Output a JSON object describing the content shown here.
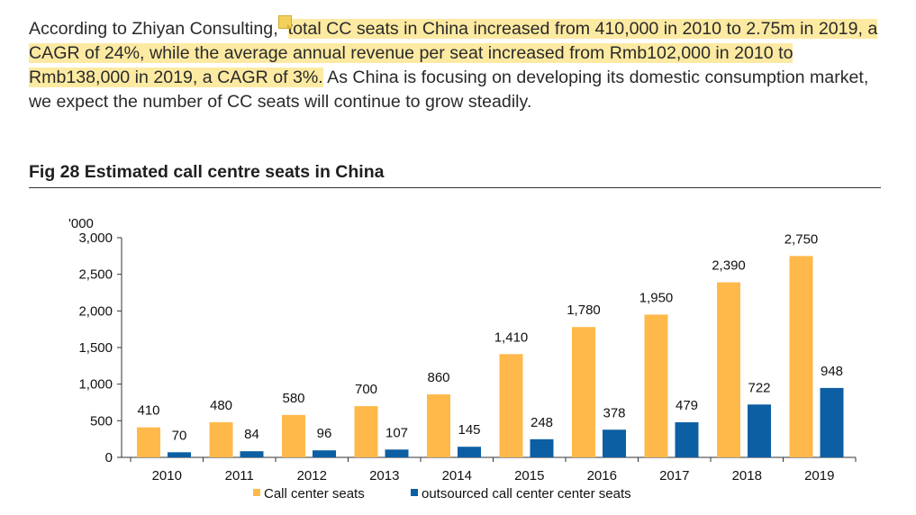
{
  "paragraph": {
    "lead": "According to Zhiyan Consulting,",
    "highlight": "total CC seats in China increased from 410,000 in 2010 to 2.75m in 2019, a CAGR of 24%, while the average annual revenue per seat increased from Rmb102,000 in 2010 to Rmb138,000 in 2019, a CAGR of 3%.",
    "tail": " As China is focusing on developing its domestic consumption market, we expect the number of CC seats will continue to grow steadily."
  },
  "figure": {
    "title": "Fig 28 Estimated call centre seats in China"
  },
  "colors": {
    "call_center": "#ffb94a",
    "outsourced": "#0c5fa3",
    "highlight": "#fdeaa2"
  },
  "chart_data": {
    "type": "bar",
    "title": "",
    "xlabel": "",
    "ylabel": "'000",
    "ylim": [
      0,
      3000
    ],
    "yticks": [
      0,
      500,
      1000,
      1500,
      2000,
      2500,
      3000
    ],
    "ytick_labels": [
      "0",
      "500",
      "1,000",
      "1,500",
      "2,000",
      "2,500",
      "3,000"
    ],
    "categories": [
      "2010",
      "2011",
      "2012",
      "2013",
      "2014",
      "2015",
      "2016",
      "2017",
      "2018",
      "2019"
    ],
    "series": [
      {
        "name": "Call center seats",
        "values": [
          410,
          480,
          580,
          700,
          860,
          1410,
          1780,
          1950,
          2390,
          2750
        ],
        "labels": [
          "410",
          "480",
          "580",
          "700",
          "860",
          "1,410",
          "1,780",
          "1,950",
          "2,390",
          "2,750"
        ]
      },
      {
        "name": "outsourced call center center seats",
        "values": [
          70,
          84,
          96,
          107,
          145,
          248,
          378,
          479,
          722,
          948
        ],
        "labels": [
          "70",
          "84",
          "96",
          "107",
          "145",
          "248",
          "378",
          "479",
          "722",
          "948"
        ]
      }
    ],
    "grid": false,
    "legend": "bottom-center"
  }
}
